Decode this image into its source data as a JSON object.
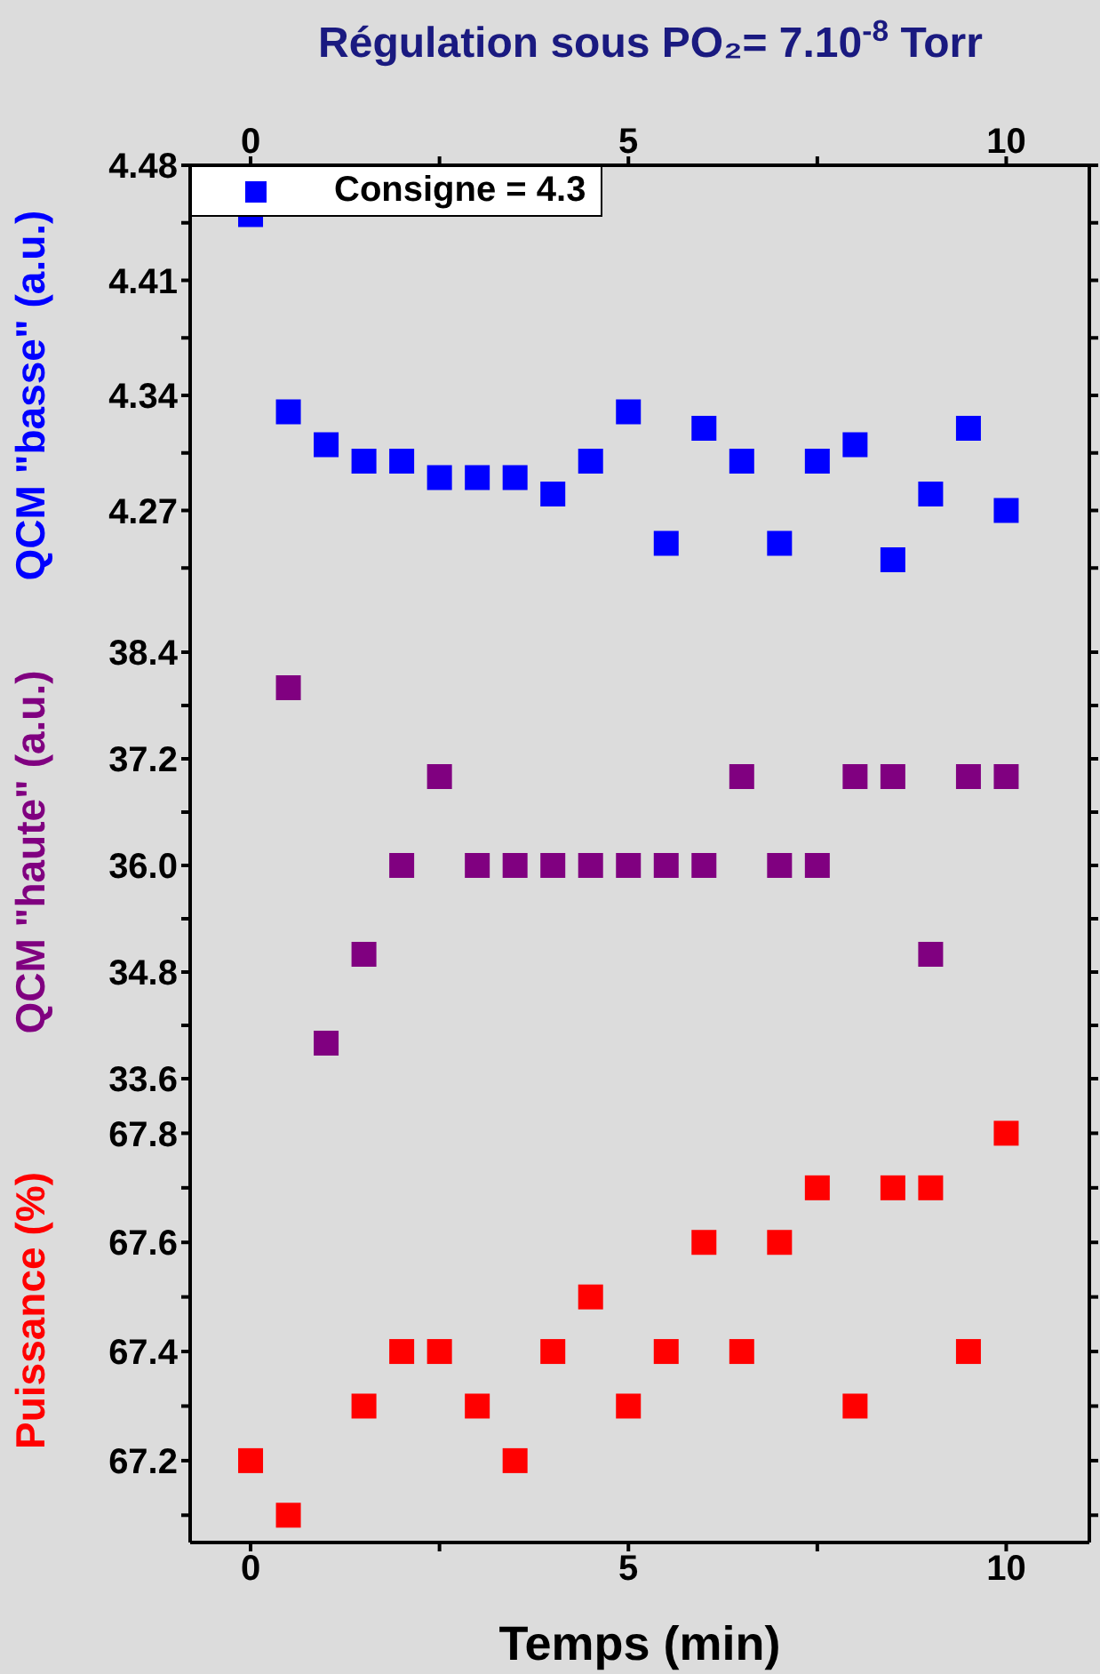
{
  "chart_data": [
    {
      "type": "scatter",
      "x2label": "Régulation sous PO₂= 7.10$^{-8}$ Torr",
      "ylabel": "QCM \"basse\" (a.u.)",
      "marker": "square",
      "legend": "top left",
      "tick_labels": "y",
      "x": [
        0,
        0.5,
        1,
        1.5,
        2,
        2.5,
        3,
        3.5,
        4,
        4.5,
        5,
        5.5,
        6,
        6.5,
        7,
        7.5,
        8,
        8.5,
        9,
        9.5,
        10
      ],
      "series": [
        {
          "name": "Consigne = 4.3",
          "color": "#0000ff",
          "values": [
            4.45,
            4.33,
            4.31,
            4.3,
            4.3,
            4.29,
            4.29,
            4.29,
            4.28,
            4.3,
            4.33,
            4.25,
            4.32,
            4.3,
            4.25,
            4.3,
            4.31,
            4.24,
            4.28,
            4.32,
            4.27
          ]
        }
      ],
      "xlim": [
        -0.8,
        11.1
      ],
      "x2lim": [
        -0.8,
        11.1
      ],
      "x2ticks": [
        0,
        {
          "value": 2.5,
          "label": null
        },
        5,
        {
          "value": 7.5,
          "label": null
        },
        10
      ],
      "ylim": [
        4.2,
        4.48
      ],
      "yticks": [
        {
          "value": 4.235,
          "label": null
        },
        4.27,
        {
          "value": 4.305,
          "label": null
        },
        4.34,
        {
          "value": 4.375,
          "label": null
        },
        4.41,
        {
          "value": 4.445,
          "label": null
        },
        4.48
      ]
    },
    {
      "type": "scatter",
      "ylabel": "QCM \"haute\" (a.u.)",
      "marker": "square",
      "tick_labels": "y",
      "x": [
        0.5,
        1,
        1.5,
        2,
        2.5,
        3,
        3.5,
        4,
        4.5,
        5,
        5.5,
        6,
        6.5,
        7,
        7.5,
        8,
        8.5,
        9,
        9.5,
        10
      ],
      "series": [
        {
          "color": "#800080",
          "values": [
            38.0,
            34.0,
            35.0,
            36.0,
            37.0,
            36.0,
            36.0,
            36.0,
            36.0,
            36.0,
            36.0,
            36.0,
            37.0,
            36.0,
            36.0,
            37.0,
            37.0,
            35.0,
            37.0,
            37.0
          ]
        }
      ],
      "xlim": [
        -0.8,
        11.1
      ],
      "ylim": [
        33.6,
        38.7
      ],
      "yticks": [
        33.6,
        {
          "value": 34.2,
          "label": null
        },
        34.8,
        {
          "value": 35.4,
          "label": null
        },
        {
          "value": 36,
          "label": "36.0"
        },
        {
          "value": 36.6,
          "label": null
        },
        37.2,
        {
          "value": 37.8,
          "label": null
        },
        38.4
      ]
    },
    {
      "type": "scatter",
      "xlabel": "Temps (min)",
      "ylabel": "Puissance (%)",
      "marker": "square",
      "x": [
        0,
        0.5,
        1.5,
        2,
        2.5,
        3,
        3.5,
        4,
        4.5,
        5,
        5.5,
        6,
        6.5,
        7,
        7.5,
        8,
        8.5,
        9,
        9.5,
        10
      ],
      "series": [
        {
          "color": "#ff0000",
          "values": [
            67.2,
            67.1,
            67.3,
            67.4,
            67.4,
            67.3,
            67.2,
            67.4,
            67.5,
            67.3,
            67.4,
            67.6,
            67.4,
            67.6,
            67.7,
            67.3,
            67.7,
            67.7,
            67.4,
            67.8
          ]
        }
      ],
      "xlim": [
        -0.8,
        11.1
      ],
      "xticks": [
        0,
        {
          "value": 2.5,
          "label": null
        },
        5,
        {
          "value": 7.5,
          "label": null
        },
        10
      ],
      "ylim": [
        67.05,
        67.9
      ],
      "yticks": [
        {
          "value": 67.1,
          "label": null
        },
        67.2,
        {
          "value": 67.3,
          "label": null
        },
        67.4,
        {
          "value": 67.5,
          "label": null
        },
        67.6,
        {
          "value": 67.7,
          "label": null
        },
        67.8
      ]
    }
  ]
}
